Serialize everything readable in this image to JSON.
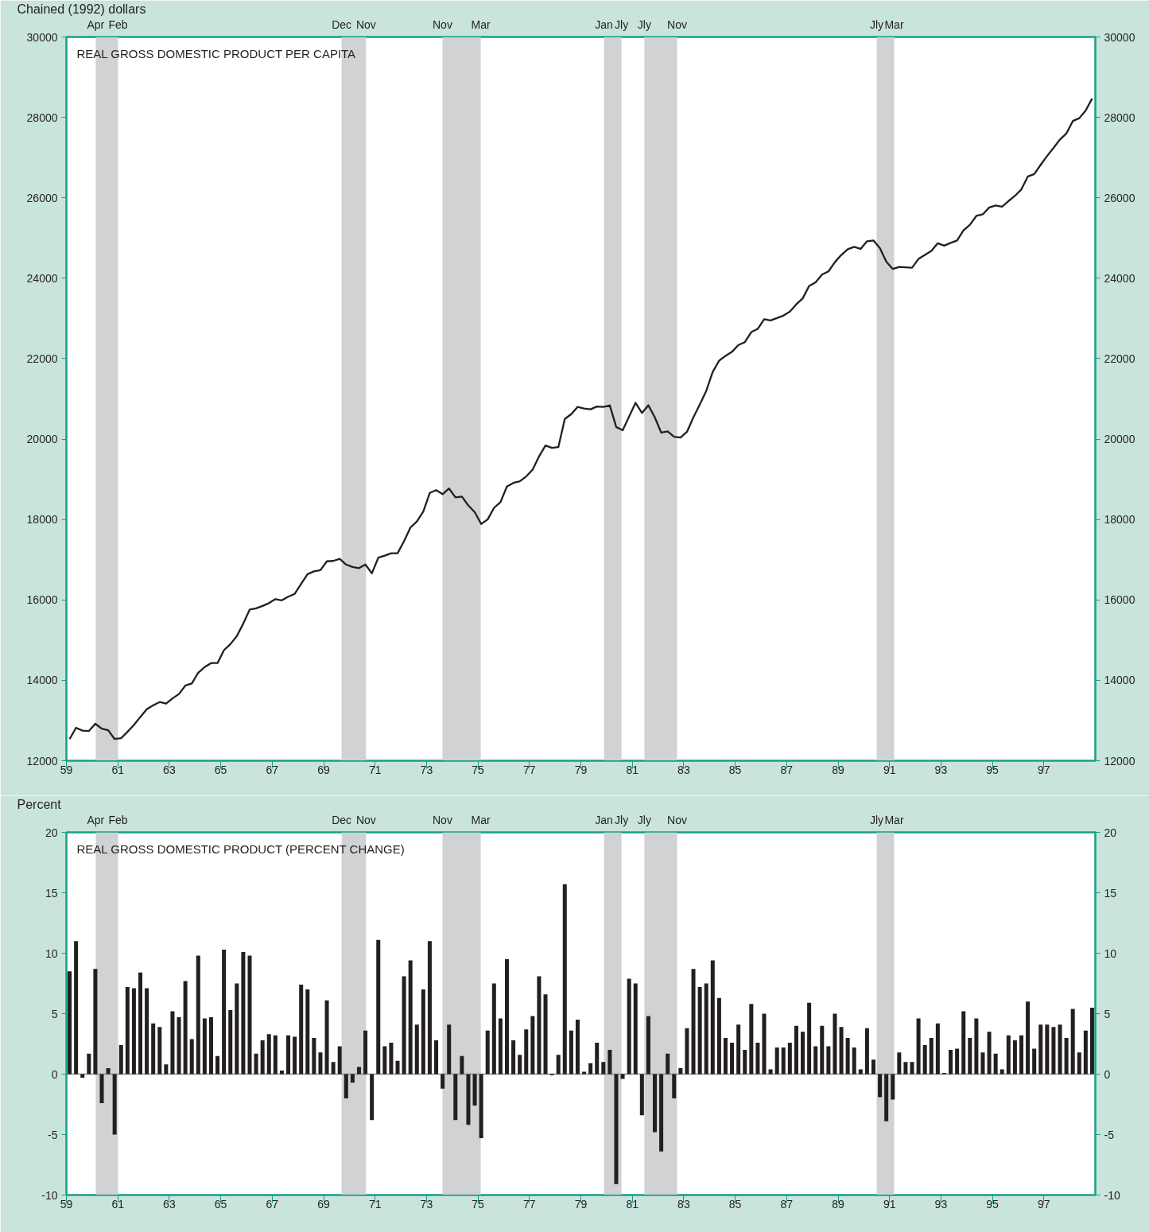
{
  "chart_data": [
    {
      "type": "line",
      "title": "REAL GROSS DOMESTIC PRODUCT PER CAPITA",
      "ylabel": "Chained (1992) dollars",
      "x": [
        59.125,
        59.375,
        59.625,
        59.875,
        60.125,
        60.375,
        60.625,
        60.875,
        61.125,
        61.375,
        61.625,
        61.875,
        62.125,
        62.375,
        62.625,
        62.875,
        63.125,
        63.375,
        63.625,
        63.875,
        64.125,
        64.375,
        64.625,
        64.875,
        65.125,
        65.375,
        65.625,
        65.875,
        66.125,
        66.375,
        66.625,
        66.875,
        67.125,
        67.375,
        67.625,
        67.875,
        68.125,
        68.375,
        68.625,
        68.875,
        69.125,
        69.375,
        69.625,
        69.875,
        70.125,
        70.375,
        70.625,
        70.875,
        71.125,
        71.375,
        71.625,
        71.875,
        72.125,
        72.375,
        72.625,
        72.875,
        73.125,
        73.375,
        73.625,
        73.875,
        74.125,
        74.375,
        74.625,
        74.875,
        75.125,
        75.375,
        75.625,
        75.875,
        76.125,
        76.375,
        76.625,
        76.875,
        77.125,
        77.375,
        77.625,
        77.875,
        78.125,
        78.375,
        78.625,
        78.875,
        79.125,
        79.375,
        79.625,
        79.875,
        80.125,
        80.375,
        80.625,
        80.875,
        81.125,
        81.375,
        81.625,
        81.875,
        82.125,
        82.375,
        82.625,
        82.875,
        83.125,
        83.375,
        83.625,
        83.875,
        84.125,
        84.375,
        84.625,
        84.875,
        85.125,
        85.375,
        85.625,
        85.875,
        86.125,
        86.375,
        86.625,
        86.875,
        87.125,
        87.375,
        87.625,
        87.875,
        88.125,
        88.375,
        88.625,
        88.875,
        89.125,
        89.375,
        89.625,
        89.875,
        90.125,
        90.375,
        90.625,
        90.875,
        91.125,
        91.375,
        91.625,
        91.875,
        92.125,
        92.375,
        92.625,
        92.875,
        93.125,
        93.375,
        93.625,
        93.875,
        94.125,
        94.375,
        94.625,
        94.875,
        95.125,
        95.375,
        95.625,
        95.875,
        96.125,
        96.375,
        96.625,
        96.875,
        97.125,
        97.375,
        97.625,
        97.875,
        98.125,
        98.375,
        98.625,
        98.875
      ],
      "series": [
        {
          "color": "#231f20",
          "values": [
            12540,
            12820,
            12750,
            12740,
            12920,
            12800,
            12760,
            12540,
            12560,
            12720,
            12890,
            13090,
            13280,
            13380,
            13460,
            13420,
            13550,
            13660,
            13870,
            13920,
            14190,
            14330,
            14430,
            14430,
            14750,
            14900,
            15100,
            15410,
            15760,
            15790,
            15850,
            15920,
            16020,
            15990,
            16080,
            16150,
            16400,
            16640,
            16710,
            16740,
            16960,
            16970,
            17020,
            16880,
            16820,
            16790,
            16880,
            16660,
            17050,
            17100,
            17160,
            17160,
            17460,
            17800,
            17950,
            18200,
            18660,
            18730,
            18630,
            18770,
            18550,
            18570,
            18350,
            18180,
            17890,
            18000,
            18290,
            18430,
            18820,
            18910,
            18950,
            19070,
            19240,
            19570,
            19840,
            19780,
            19800,
            20500,
            20620,
            20800,
            20760,
            20740,
            20810,
            20800,
            20840,
            20300,
            20220,
            20560,
            20900,
            20650,
            20840,
            20540,
            20160,
            20190,
            20060,
            20040,
            20180,
            20540,
            20860,
            21200,
            21670,
            21950,
            22070,
            22170,
            22340,
            22410,
            22660,
            22740,
            22980,
            22950,
            23010,
            23070,
            23170,
            23350,
            23500,
            23810,
            23900,
            24090,
            24170,
            24400,
            24580,
            24720,
            24780,
            24730,
            24920,
            24940,
            24750,
            24410,
            24230,
            24280,
            24270,
            24260,
            24480,
            24580,
            24680,
            24870,
            24810,
            24880,
            24940,
            25190,
            25330,
            25550,
            25590,
            25760,
            25810,
            25780,
            25920,
            26050,
            26210,
            26530,
            26590,
            26820,
            27040,
            27240,
            27450,
            27600,
            27910,
            27980,
            28170,
            28470
          ]
        }
      ],
      "xlim": [
        59,
        99
      ],
      "xticks": [
        59,
        61,
        63,
        65,
        67,
        69,
        71,
        73,
        75,
        77,
        79,
        81,
        83,
        85,
        87,
        89,
        91,
        93,
        95,
        97
      ],
      "ylim": [
        12000,
        30000
      ],
      "yticks": [
        12000,
        14000,
        16000,
        18000,
        20000,
        22000,
        24000,
        26000,
        28000,
        30000
      ],
      "y2lim": [
        12000,
        30000
      ],
      "y2ticks": [
        12000,
        14000,
        16000,
        18000,
        20000,
        22000,
        24000,
        26000,
        28000,
        30000
      ],
      "bands": [
        {
          "axis": "x",
          "from": 60.14,
          "to": 61.01,
          "color": "#d1d2d4"
        },
        {
          "axis": "x",
          "from": 69.7,
          "to": 70.65,
          "color": "#d1d2d4"
        },
        {
          "axis": "x",
          "from": 73.62,
          "to": 75.11,
          "color": "#d1d2d4"
        },
        {
          "axis": "x",
          "from": 79.9,
          "to": 80.58,
          "color": "#d1d2d4"
        },
        {
          "axis": "x",
          "from": 81.47,
          "to": 82.74,
          "color": "#d1d2d4"
        },
        {
          "axis": "x",
          "from": 90.5,
          "to": 91.18,
          "color": "#d1d2d4"
        }
      ],
      "annotations": [
        "Apr",
        "Feb",
        "Dec",
        "Nov",
        "Nov",
        "Mar",
        "Jan",
        "Jly",
        "Jly",
        "Nov",
        "Jly",
        "Mar"
      ]
    },
    {
      "type": "bar",
      "title": "REAL GROSS DOMESTIC PRODUCT (PERCENT CHANGE)",
      "ylabel": "Percent",
      "x": [
        59.125,
        59.375,
        59.625,
        59.875,
        60.125,
        60.375,
        60.625,
        60.875,
        61.125,
        61.375,
        61.625,
        61.875,
        62.125,
        62.375,
        62.625,
        62.875,
        63.125,
        63.375,
        63.625,
        63.875,
        64.125,
        64.375,
        64.625,
        64.875,
        65.125,
        65.375,
        65.625,
        65.875,
        66.125,
        66.375,
        66.625,
        66.875,
        67.125,
        67.375,
        67.625,
        67.875,
        68.125,
        68.375,
        68.625,
        68.875,
        69.125,
        69.375,
        69.625,
        69.875,
        70.125,
        70.375,
        70.625,
        70.875,
        71.125,
        71.375,
        71.625,
        71.875,
        72.125,
        72.375,
        72.625,
        72.875,
        73.125,
        73.375,
        73.625,
        73.875,
        74.125,
        74.375,
        74.625,
        74.875,
        75.125,
        75.375,
        75.625,
        75.875,
        76.125,
        76.375,
        76.625,
        76.875,
        77.125,
        77.375,
        77.625,
        77.875,
        78.125,
        78.375,
        78.625,
        78.875,
        79.125,
        79.375,
        79.625,
        79.875,
        80.125,
        80.375,
        80.625,
        80.875,
        81.125,
        81.375,
        81.625,
        81.875,
        82.125,
        82.375,
        82.625,
        82.875,
        83.125,
        83.375,
        83.625,
        83.875,
        84.125,
        84.375,
        84.625,
        84.875,
        85.125,
        85.375,
        85.625,
        85.875,
        86.125,
        86.375,
        86.625,
        86.875,
        87.125,
        87.375,
        87.625,
        87.875,
        88.125,
        88.375,
        88.625,
        88.875,
        89.125,
        89.375,
        89.625,
        89.875,
        90.125,
        90.375,
        90.625,
        90.875,
        91.125,
        91.375,
        91.625,
        91.875,
        92.125,
        92.375,
        92.625,
        92.875,
        93.125,
        93.375,
        93.625,
        93.875,
        94.125,
        94.375,
        94.625,
        94.875,
        95.125,
        95.375,
        95.625,
        95.875,
        96.125,
        96.375,
        96.625,
        96.875,
        97.125,
        97.375,
        97.625,
        97.875,
        98.125,
        98.375,
        98.625,
        98.875
      ],
      "series": [
        {
          "color": "#231f20",
          "values": [
            8.5,
            11.0,
            -0.3,
            1.7,
            8.7,
            -2.4,
            0.5,
            -5.0,
            2.4,
            7.2,
            7.1,
            8.4,
            7.1,
            4.2,
            3.9,
            0.8,
            5.2,
            4.7,
            7.7,
            2.9,
            9.8,
            4.6,
            4.7,
            1.5,
            10.3,
            5.3,
            7.5,
            10.1,
            9.8,
            1.7,
            2.8,
            3.3,
            3.2,
            0.3,
            3.2,
            3.1,
            7.4,
            7.0,
            3.0,
            1.8,
            6.1,
            1.0,
            2.3,
            -2.0,
            -0.7,
            0.6,
            3.6,
            -3.8,
            11.1,
            2.3,
            2.6,
            1.1,
            8.1,
            9.4,
            4.1,
            7.0,
            11.0,
            2.8,
            -1.2,
            4.1,
            -3.8,
            1.5,
            -4.2,
            -2.6,
            -5.3,
            3.6,
            7.5,
            4.6,
            9.5,
            2.8,
            1.6,
            3.7,
            4.8,
            8.1,
            6.6,
            -0.1,
            1.6,
            15.7,
            3.6,
            4.5,
            0.2,
            0.9,
            2.6,
            1.0,
            2.0,
            -9.1,
            -0.4,
            7.9,
            7.5,
            -3.4,
            4.8,
            -4.8,
            -6.4,
            1.7,
            -2.0,
            0.5,
            3.8,
            8.7,
            7.2,
            7.5,
            9.4,
            6.3,
            3.0,
            2.6,
            4.1,
            2.0,
            5.8,
            2.6,
            5.0,
            0.4,
            2.2,
            2.2,
            2.6,
            4.0,
            3.5,
            5.9,
            2.3,
            4.0,
            2.3,
            5.0,
            3.9,
            3.0,
            2.2,
            0.4,
            3.8,
            1.2,
            -1.9,
            -3.9,
            -2.1,
            1.8,
            1.0,
            1.0,
            4.6,
            2.4,
            3.0,
            4.2,
            0.1,
            2.0,
            2.1,
            5.2,
            3.0,
            4.6,
            1.8,
            3.5,
            1.7,
            0.4,
            3.2,
            2.8,
            3.2,
            6.0,
            2.1,
            4.1,
            4.1,
            3.9,
            4.1,
            3.0,
            5.4,
            1.8,
            3.6,
            5.5
          ]
        }
      ],
      "xlim": [
        59,
        99
      ],
      "xticks": [
        59,
        61,
        63,
        65,
        67,
        69,
        71,
        73,
        75,
        77,
        79,
        81,
        83,
        85,
        87,
        89,
        91,
        93,
        95,
        97
      ],
      "ylim": [
        -10,
        20
      ],
      "yticks": [
        -10,
        -5,
        0,
        5,
        10,
        15,
        20
      ],
      "y2lim": [
        -10,
        20
      ],
      "y2ticks": [
        -10,
        -5,
        0,
        5,
        10,
        15,
        20
      ],
      "ref_lines": [
        {
          "axis": "y",
          "value": 0,
          "color": "#8a8a8a"
        }
      ],
      "bands": [
        {
          "axis": "x",
          "from": 60.14,
          "to": 61.01,
          "color": "#d1d2d4"
        },
        {
          "axis": "x",
          "from": 69.7,
          "to": 70.65,
          "color": "#d1d2d4"
        },
        {
          "axis": "x",
          "from": 73.62,
          "to": 75.11,
          "color": "#d1d2d4"
        },
        {
          "axis": "x",
          "from": 79.9,
          "to": 80.58,
          "color": "#d1d2d4"
        },
        {
          "axis": "x",
          "from": 81.47,
          "to": 82.74,
          "color": "#d1d2d4"
        },
        {
          "axis": "x",
          "from": 90.5,
          "to": 91.18,
          "color": "#d1d2d4"
        }
      ],
      "annotations": [
        "Apr",
        "Feb",
        "Dec",
        "Nov",
        "Nov",
        "Mar",
        "Jan",
        "Jly",
        "Jly",
        "Nov",
        "Jly",
        "Mar"
      ]
    }
  ]
}
